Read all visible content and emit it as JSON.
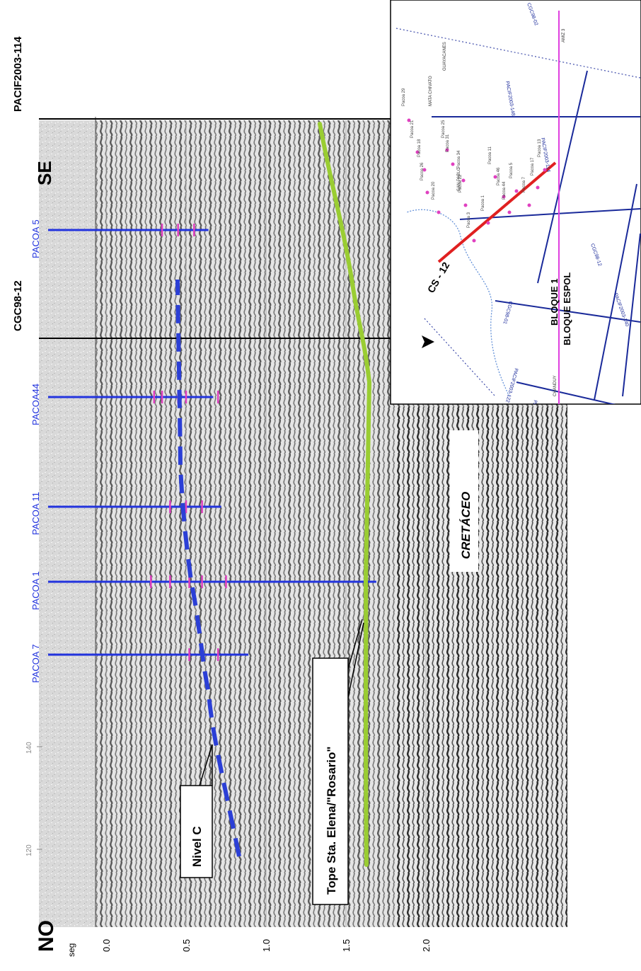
{
  "section": {
    "direction_left": "NO",
    "direction_right": "SE",
    "time_unit": "seg",
    "time_ticks": [
      {
        "value": 0.0,
        "label": "0.0"
      },
      {
        "value": 0.5,
        "label": "0.5"
      },
      {
        "value": 1.0,
        "label": "1.0"
      },
      {
        "value": 1.5,
        "label": "1.5"
      },
      {
        "value": 2.0,
        "label": "2.0"
      }
    ],
    "trace_labels": [
      "120",
      "140"
    ],
    "tie_lines": [
      {
        "label": "CGC98-12"
      },
      {
        "label": "PACIF2003-114"
      }
    ],
    "wells": [
      {
        "label": "PACOA 7"
      },
      {
        "label": "PACOA 1"
      },
      {
        "label": "PACOA 11"
      },
      {
        "label": "PACOA44"
      },
      {
        "label": "PACOA 5"
      }
    ],
    "horizons": [
      {
        "label": "Nivel C",
        "color": "#2b3fd6"
      },
      {
        "label": "Tope Sta. Elena/\"Rosario\"",
        "color": "#9acd32"
      }
    ],
    "formation_label": "CRETÁCEO",
    "colors": {
      "well": "#2233dd",
      "tick": "#e040c0",
      "tie": "#000000"
    }
  },
  "inset_map": {
    "line_label": "CS - 12",
    "blocks": [
      "BLOQUE 1",
      "BLOQUE ESPOL"
    ],
    "survey_lines": [
      "CGC98-02",
      "PACIF2003-148",
      "PACIF2003-114",
      "CGC98-12",
      "PACIF2003-140",
      "CGC98-01",
      "PACIF2003-122",
      "PACIF2003-103"
    ],
    "well_names": [
      "Pacoa 29",
      "Pacoa 21",
      "Pacoa 18",
      "Pacoa 26",
      "Pacoa 20",
      "Pacoa 25",
      "Pacoa 31",
      "Pacoa 34",
      "Pacoa 22",
      "Pacoa 3",
      "Pacoa 1",
      "Pacoa 11",
      "Pacoa 46",
      "Pacoa 44",
      "Pacoa 5",
      "Pacoa 7",
      "Pacoa 17",
      "Pacoa 13"
    ],
    "place_names": [
      "MATA CHIVATO",
      "GUAYACANES",
      "SAN PABLO",
      "AMIZ 3",
      "CHANDUY"
    ],
    "colors": {
      "profile": "#e02020",
      "boundary": "#e040e0",
      "lines": "#1a2a9a",
      "wells": "#e040c0"
    }
  }
}
